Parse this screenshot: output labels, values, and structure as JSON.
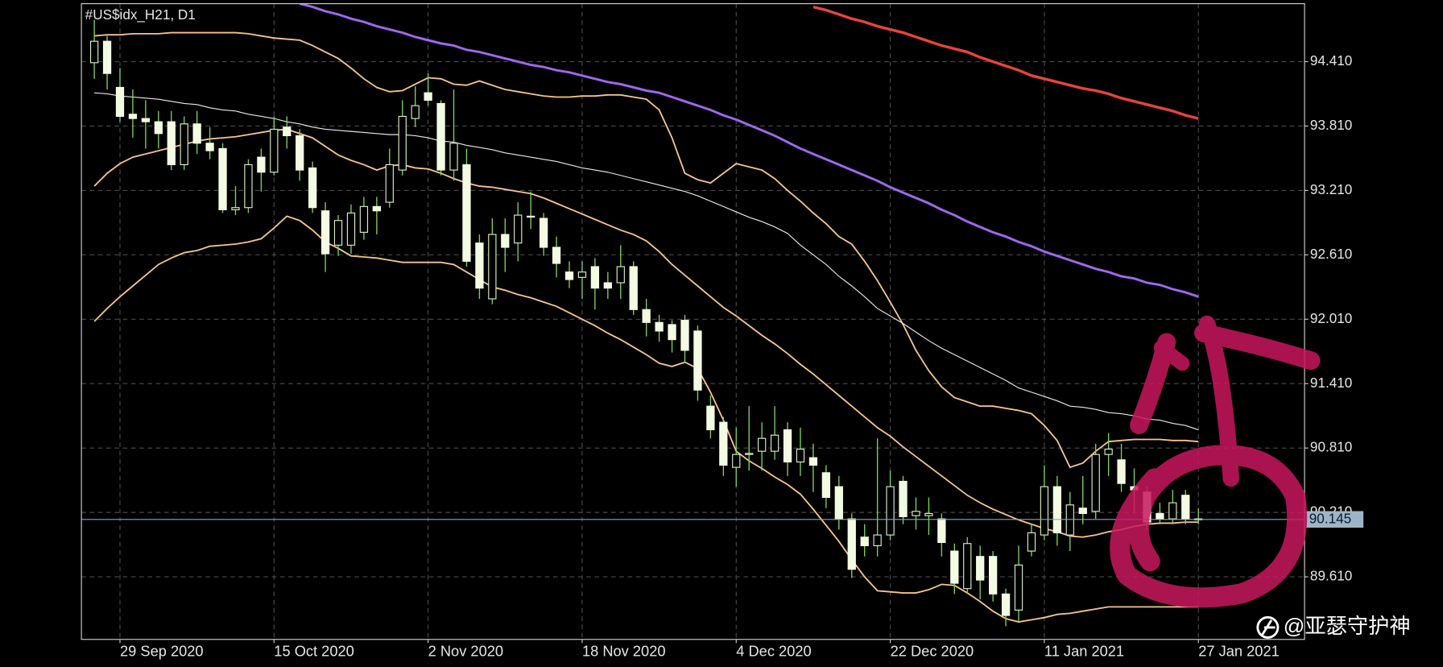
{
  "chart_data": {
    "type": "candlestick",
    "title": "#US$idx_H21, D1",
    "watermark": "@亚瑟守护神",
    "categories": [
      null,
      null,
      "29 Sep 2020",
      null,
      null,
      null,
      null,
      null,
      null,
      null,
      null,
      null,
      null,
      null,
      "15 Oct 2020",
      null,
      null,
      null,
      null,
      null,
      null,
      null,
      null,
      null,
      null,
      null,
      "2 Nov 2020",
      null,
      null,
      null,
      null,
      null,
      null,
      null,
      null,
      null,
      null,
      null,
      "18 Nov 2020",
      null,
      null,
      null,
      null,
      null,
      null,
      null,
      null,
      null,
      null,
      null,
      "4 Dec 2020",
      null,
      null,
      null,
      null,
      null,
      null,
      null,
      null,
      null,
      null,
      null,
      "22 Dec 2020",
      null,
      null,
      null,
      null,
      null,
      null,
      null,
      null,
      null,
      null,
      null,
      "11 Jan 2021",
      null,
      null,
      null,
      null,
      null,
      null,
      null,
      null,
      null,
      null,
      null,
      "27 Jan 2021"
    ],
    "open": [
      94.4,
      94.6,
      94.17,
      93.92,
      93.88,
      93.85,
      93.85,
      93.45,
      93.83,
      93.65,
      93.6,
      93.03,
      93.05,
      93.52,
      93.38,
      93.8,
      93.72,
      93.42,
      93.02,
      92.7,
      92.7,
      92.82,
      93.06,
      93.1,
      93.4,
      93.88,
      94.12,
      94.02,
      93.4,
      93.45,
      92.72,
      92.2,
      92.8,
      92.72,
      92.97,
      92.95,
      92.68,
      92.45,
      92.4,
      92.5,
      92.35,
      92.35,
      92.5,
      92.1,
      91.98,
      91.96,
      92.0,
      91.9,
      91.2,
      91.05,
      90.63,
      90.75,
      90.78,
      90.78,
      90.98,
      90.68,
      90.72,
      90.58,
      90.45,
      90.15,
      89.98,
      89.9,
      90.0,
      90.5,
      90.18,
      90.18,
      90.15,
      89.85,
      89.5,
      89.8,
      89.8,
      89.45,
      89.3,
      89.85,
      90.0,
      90.45,
      90.0,
      90.25,
      90.22,
      90.75,
      90.7,
      90.45,
      90.4,
      90.2,
      90.15,
      90.37,
      90.15
    ],
    "high": [
      94.8,
      94.65,
      94.35,
      94.15,
      94.05,
      93.95,
      93.95,
      93.9,
      93.95,
      93.8,
      93.65,
      93.25,
      93.5,
      93.6,
      93.9,
      93.9,
      93.78,
      93.48,
      93.1,
      92.98,
      93.08,
      93.15,
      93.15,
      93.6,
      94.05,
      94.18,
      94.3,
      94.05,
      94.15,
      93.6,
      92.8,
      92.95,
      92.95,
      93.1,
      93.2,
      93.0,
      92.78,
      92.55,
      92.55,
      92.58,
      92.45,
      92.7,
      92.55,
      92.2,
      92.05,
      92.0,
      92.05,
      91.95,
      91.3,
      91.1,
      91.0,
      91.2,
      91.05,
      91.2,
      91.05,
      91.0,
      90.85,
      90.65,
      90.55,
      90.2,
      90.1,
      90.9,
      90.6,
      90.55,
      90.35,
      90.35,
      90.2,
      89.92,
      89.98,
      89.9,
      89.85,
      89.5,
      89.9,
      90.1,
      90.65,
      90.55,
      90.4,
      90.55,
      90.85,
      90.95,
      90.85,
      90.62,
      90.45,
      90.3,
      90.42,
      90.42,
      90.25
    ],
    "low": [
      94.25,
      94.15,
      93.85,
      93.7,
      93.6,
      93.6,
      93.4,
      93.4,
      93.55,
      93.5,
      93.0,
      92.98,
      93.0,
      93.2,
      93.35,
      93.6,
      93.3,
      93.0,
      92.45,
      92.6,
      92.62,
      92.75,
      92.8,
      93.05,
      93.35,
      93.8,
      94.0,
      93.35,
      93.3,
      92.5,
      92.2,
      92.15,
      92.45,
      92.55,
      92.85,
      92.6,
      92.4,
      92.3,
      92.2,
      92.1,
      92.2,
      92.2,
      92.05,
      91.85,
      91.8,
      91.7,
      91.6,
      91.25,
      90.9,
      90.55,
      90.45,
      90.6,
      90.6,
      90.7,
      90.55,
      90.55,
      90.4,
      90.25,
      90.05,
      89.6,
      89.8,
      89.8,
      89.95,
      90.1,
      90.05,
      90.0,
      89.8,
      89.45,
      89.45,
      89.4,
      89.38,
      89.15,
      89.2,
      89.8,
      89.95,
      89.9,
      89.85,
      90.1,
      90.15,
      90.55,
      90.4,
      90.2,
      90.05,
      90.1,
      90.1,
      90.1,
      90.1
    ],
    "close": [
      94.6,
      94.3,
      93.9,
      93.88,
      93.85,
      93.74,
      93.45,
      93.83,
      93.65,
      93.58,
      93.03,
      93.05,
      93.45,
      93.38,
      93.78,
      93.72,
      93.4,
      93.05,
      92.62,
      92.93,
      93.0,
      93.06,
      93.02,
      93.45,
      93.9,
      94.0,
      94.05,
      93.4,
      93.65,
      92.55,
      92.3,
      92.8,
      92.68,
      92.98,
      92.97,
      92.68,
      92.53,
      92.38,
      92.45,
      92.3,
      92.3,
      92.5,
      92.1,
      91.98,
      91.9,
      91.82,
      91.72,
      91.35,
      90.98,
      90.65,
      90.75,
      90.76,
      90.9,
      90.93,
      90.68,
      90.8,
      90.65,
      90.35,
      90.15,
      89.68,
      89.9,
      90.0,
      90.45,
      90.17,
      90.22,
      90.2,
      89.93,
      89.55,
      89.92,
      89.58,
      89.45,
      89.25,
      89.72,
      90.02,
      90.45,
      90.02,
      90.28,
      90.2,
      90.75,
      90.8,
      90.48,
      90.42,
      90.12,
      90.15,
      90.3,
      90.15,
      90.145
    ],
    "bull_color": "#000000",
    "bull_outline": "#d8f0c0",
    "bear_color": "#f4fbe3",
    "wick_color": "#7ccf5a",
    "lines": [
      {
        "color": "#f7c48c",
        "width": 1.6,
        "values": [
          94.65,
          94.66,
          94.66,
          94.67,
          94.67,
          94.67,
          94.68,
          94.68,
          94.68,
          94.68,
          94.68,
          94.68,
          94.67,
          94.65,
          94.63,
          94.62,
          94.61,
          94.56,
          94.5,
          94.44,
          94.35,
          94.25,
          94.17,
          94.13,
          94.14,
          94.2,
          94.26,
          94.25,
          94.2,
          94.19,
          94.23,
          94.19,
          94.15,
          94.13,
          94.11,
          94.09,
          94.08,
          94.08,
          94.09,
          94.09,
          94.1,
          94.1,
          94.08,
          94.06,
          93.96,
          93.7,
          93.37,
          93.31,
          93.28,
          93.37,
          93.46,
          93.43,
          93.4,
          93.32,
          93.21,
          93.11,
          93.0,
          92.9,
          92.78,
          92.71,
          92.55,
          92.37,
          92.17,
          91.96,
          91.72,
          91.53,
          91.38,
          91.28,
          91.24,
          91.2,
          91.2,
          91.18,
          91.16,
          91.13,
          91.02,
          90.88,
          90.63,
          90.67,
          90.78,
          90.87,
          90.88,
          90.89,
          90.89,
          90.89,
          90.88,
          90.88,
          90.87
        ]
      },
      {
        "color": "#e8e8e8",
        "width": 1,
        "values": [
          94.12,
          94.11,
          94.09,
          94.08,
          94.07,
          94.06,
          94.04,
          94.02,
          94.01,
          93.98,
          93.96,
          93.95,
          93.92,
          93.9,
          93.88,
          93.85,
          93.83,
          93.8,
          93.78,
          93.77,
          93.76,
          93.75,
          93.74,
          93.73,
          93.73,
          93.72,
          93.7,
          93.67,
          93.66,
          93.63,
          93.61,
          93.59,
          93.56,
          93.54,
          93.52,
          93.5,
          93.48,
          93.45,
          93.42,
          93.4,
          93.38,
          93.35,
          93.32,
          93.29,
          93.26,
          93.23,
          93.2,
          93.16,
          93.11,
          93.06,
          93.01,
          92.96,
          92.92,
          92.87,
          92.81,
          92.7,
          92.61,
          92.52,
          92.41,
          92.32,
          92.22,
          92.11,
          92.04,
          91.97,
          91.89,
          91.81,
          91.74,
          91.68,
          91.62,
          91.56,
          91.5,
          91.44,
          91.37,
          91.33,
          91.29,
          91.25,
          91.2,
          91.19,
          91.17,
          91.14,
          91.13,
          91.11,
          91.08,
          91.07,
          91.04,
          91.02,
          90.98
        ]
      },
      {
        "color": "#f7c48c",
        "width": 1.6,
        "values": [
          93.25,
          93.37,
          93.46,
          93.52,
          93.55,
          93.58,
          93.61,
          93.64,
          93.67,
          93.69,
          93.7,
          93.71,
          93.73,
          93.75,
          93.77,
          93.78,
          93.74,
          93.7,
          93.62,
          93.54,
          93.49,
          93.45,
          93.4,
          93.44,
          93.45,
          93.42,
          93.41,
          93.37,
          93.32,
          93.28,
          93.25,
          93.24,
          93.22,
          93.2,
          93.18,
          93.14,
          93.09,
          93.04,
          92.99,
          92.94,
          92.89,
          92.84,
          92.8,
          92.74,
          92.64,
          92.52,
          92.42,
          92.32,
          92.22,
          92.12,
          92.04,
          91.95,
          91.86,
          91.78,
          91.69,
          91.59,
          91.5,
          91.4,
          91.3,
          91.2,
          91.1,
          91.0,
          90.92,
          90.82,
          90.73,
          90.64,
          90.55,
          90.46,
          90.37,
          90.3,
          90.24,
          90.19,
          90.14,
          90.1,
          90.06,
          90.03,
          89.99,
          89.98,
          90.0,
          90.03,
          90.05,
          90.08,
          90.1,
          90.11,
          90.11,
          90.12,
          90.12
        ]
      },
      {
        "color": "#f7c48c",
        "width": 1.6,
        "values": [
          91.99,
          92.11,
          92.22,
          92.32,
          92.42,
          92.52,
          92.58,
          92.63,
          92.65,
          92.69,
          92.7,
          92.71,
          92.73,
          92.76,
          92.86,
          92.97,
          92.93,
          92.84,
          92.73,
          92.67,
          92.6,
          92.59,
          92.58,
          92.56,
          92.54,
          92.54,
          92.54,
          92.54,
          92.52,
          92.45,
          92.38,
          92.31,
          92.28,
          92.24,
          92.21,
          92.17,
          92.13,
          92.07,
          92.01,
          91.95,
          91.88,
          91.82,
          91.75,
          91.68,
          91.6,
          91.57,
          91.61,
          91.55,
          91.33,
          91.07,
          90.78,
          90.69,
          90.62,
          90.54,
          90.47,
          90.38,
          90.24,
          90.09,
          89.94,
          89.77,
          89.61,
          89.48,
          89.47,
          89.46,
          89.46,
          89.49,
          89.54,
          89.53,
          89.46,
          89.38,
          89.29,
          89.22,
          89.19,
          89.21,
          89.23,
          89.26,
          89.27,
          89.29,
          89.31,
          89.33,
          89.33,
          89.33,
          89.33,
          89.33,
          89.33,
          89.33,
          89.33
        ]
      },
      {
        "color": "#a066f0",
        "width": 2.6,
        "values": [
          null,
          null,
          null,
          null,
          null,
          null,
          null,
          null,
          null,
          null,
          null,
          null,
          null,
          null,
          null,
          null,
          94.95,
          94.92,
          94.88,
          94.85,
          94.81,
          94.78,
          94.74,
          94.71,
          94.68,
          94.64,
          94.61,
          94.58,
          94.56,
          94.52,
          94.5,
          94.47,
          94.44,
          94.41,
          94.38,
          94.36,
          94.33,
          94.31,
          94.28,
          94.25,
          94.22,
          94.2,
          94.17,
          94.14,
          94.12,
          94.08,
          94.04,
          94.0,
          93.96,
          93.91,
          93.87,
          93.82,
          93.77,
          93.72,
          93.66,
          93.6,
          93.55,
          93.5,
          93.45,
          93.4,
          93.35,
          93.3,
          93.24,
          93.19,
          93.14,
          93.09,
          93.03,
          92.98,
          92.92,
          92.87,
          92.82,
          92.78,
          92.73,
          92.69,
          92.64,
          92.6,
          92.56,
          92.52,
          92.48,
          92.45,
          92.41,
          92.39,
          92.35,
          92.33,
          92.29,
          92.26,
          92.22
        ]
      },
      {
        "color": "#e8433a",
        "width": 3,
        "values": [
          null,
          null,
          null,
          null,
          null,
          null,
          null,
          null,
          null,
          null,
          null,
          null,
          null,
          null,
          null,
          null,
          null,
          null,
          null,
          null,
          null,
          null,
          null,
          null,
          null,
          null,
          null,
          null,
          null,
          null,
          null,
          null,
          null,
          null,
          null,
          null,
          null,
          null,
          null,
          null,
          null,
          null,
          null,
          null,
          null,
          null,
          null,
          null,
          null,
          null,
          null,
          null,
          null,
          null,
          null,
          null,
          94.92,
          94.89,
          94.85,
          94.81,
          94.78,
          94.74,
          94.71,
          94.68,
          94.64,
          94.6,
          94.56,
          94.53,
          94.5,
          94.45,
          94.41,
          94.37,
          94.33,
          94.28,
          94.25,
          94.22,
          94.19,
          94.16,
          94.14,
          94.11,
          94.07,
          94.04,
          94.01,
          93.98,
          93.95,
          93.91,
          93.88
        ]
      }
    ],
    "last_price": 90.145,
    "ylim": [
      89.027,
      94.95
    ],
    "yticks": [
      {
        "value": 94.41,
        "label": "94.410"
      },
      {
        "value": 93.81,
        "label": "93.810"
      },
      {
        "value": 93.21,
        "label": "93.210"
      },
      {
        "value": 92.61,
        "label": "92.610"
      },
      {
        "value": 92.01,
        "label": "92.010"
      },
      {
        "value": 91.41,
        "label": "91.410"
      },
      {
        "value": 90.81,
        "label": "90.810"
      },
      {
        "value": 90.21,
        "label": "90.210"
      },
      {
        "value": 89.61,
        "label": "89.610"
      }
    ],
    "grid": true
  }
}
